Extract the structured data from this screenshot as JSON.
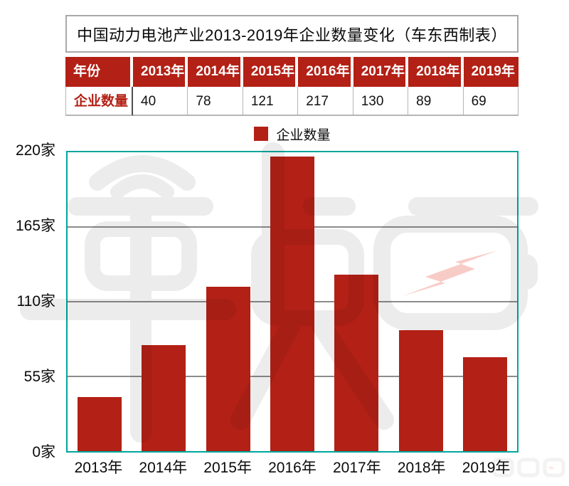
{
  "title": "中国动力电池产业2013-2019年企业数量变化（车东西制表）",
  "table": {
    "corner_label": "年份",
    "row_label": "企业数量",
    "years": [
      "2013年",
      "2014年",
      "2015年",
      "2016年",
      "2017年",
      "2018年",
      "2019年"
    ],
    "values": [
      "40",
      "78",
      "121",
      "217",
      "130",
      "89",
      "69"
    ]
  },
  "legend": {
    "label": "企业数量",
    "swatch_color": "#B32015"
  },
  "chart_data": {
    "type": "bar",
    "title": "中国动力电池产业2013-2019年企业数量变化（车东西制表）",
    "series_name": "企业数量",
    "categories": [
      "2013年",
      "2014年",
      "2015年",
      "2016年",
      "2017年",
      "2018年",
      "2019年"
    ],
    "values": [
      40,
      78,
      121,
      217,
      130,
      89,
      69
    ],
    "xlabel": "",
    "ylabel": "",
    "ylim": [
      0,
      220
    ],
    "yticks": [
      0,
      55,
      110,
      165,
      220
    ],
    "ytick_labels": [
      "0家",
      "55家",
      "110家",
      "165家",
      "220家"
    ],
    "grid": true,
    "legend_position": "top",
    "bar_color": "#B32015",
    "plot_border_color": "#00A69C",
    "gridline_color": "#8c8c8c"
  },
  "watermark": {
    "name": "车东西 logo watermark",
    "main_color": "#ECECEC",
    "bolt_color": "#F8CCC6"
  }
}
